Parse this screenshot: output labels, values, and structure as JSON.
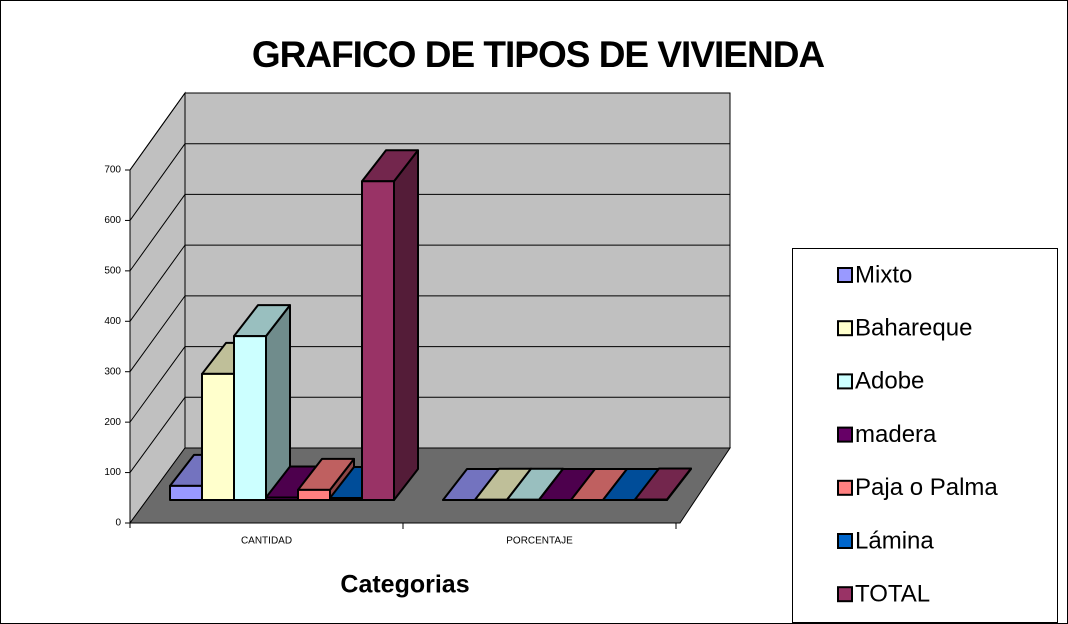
{
  "chart_data": {
    "type": "bar",
    "title": "GRAFICO DE TIPOS DE VIVIENDA",
    "x_label": "Categorias",
    "categories": [
      "CANTIDAD",
      "PORCENTAJE"
    ],
    "series": [
      {
        "name": "Mixto",
        "color": "#9999ff",
        "values": [
          28,
          0.04
        ]
      },
      {
        "name": "Bahareque",
        "color": "#ffffcc",
        "values": [
          250,
          0.4
        ]
      },
      {
        "name": "Adobe",
        "color": "#ccffff",
        "values": [
          325,
          0.51
        ]
      },
      {
        "name": "madera",
        "color": "#660066",
        "values": [
          5,
          0.01
        ]
      },
      {
        "name": "Paja o Palma",
        "color": "#ff8080",
        "values": [
          20,
          0.03
        ]
      },
      {
        "name": "Lámina",
        "color": "#0066cc",
        "values": [
          4,
          0.01
        ]
      },
      {
        "name": "TOTAL",
        "color": "#993366",
        "values": [
          632,
          1
        ]
      }
    ],
    "ylim": [
      0,
      700
    ],
    "yticks": [
      0,
      100,
      200,
      300,
      400,
      500,
      600,
      700
    ],
    "grid": true,
    "legend": "right"
  }
}
